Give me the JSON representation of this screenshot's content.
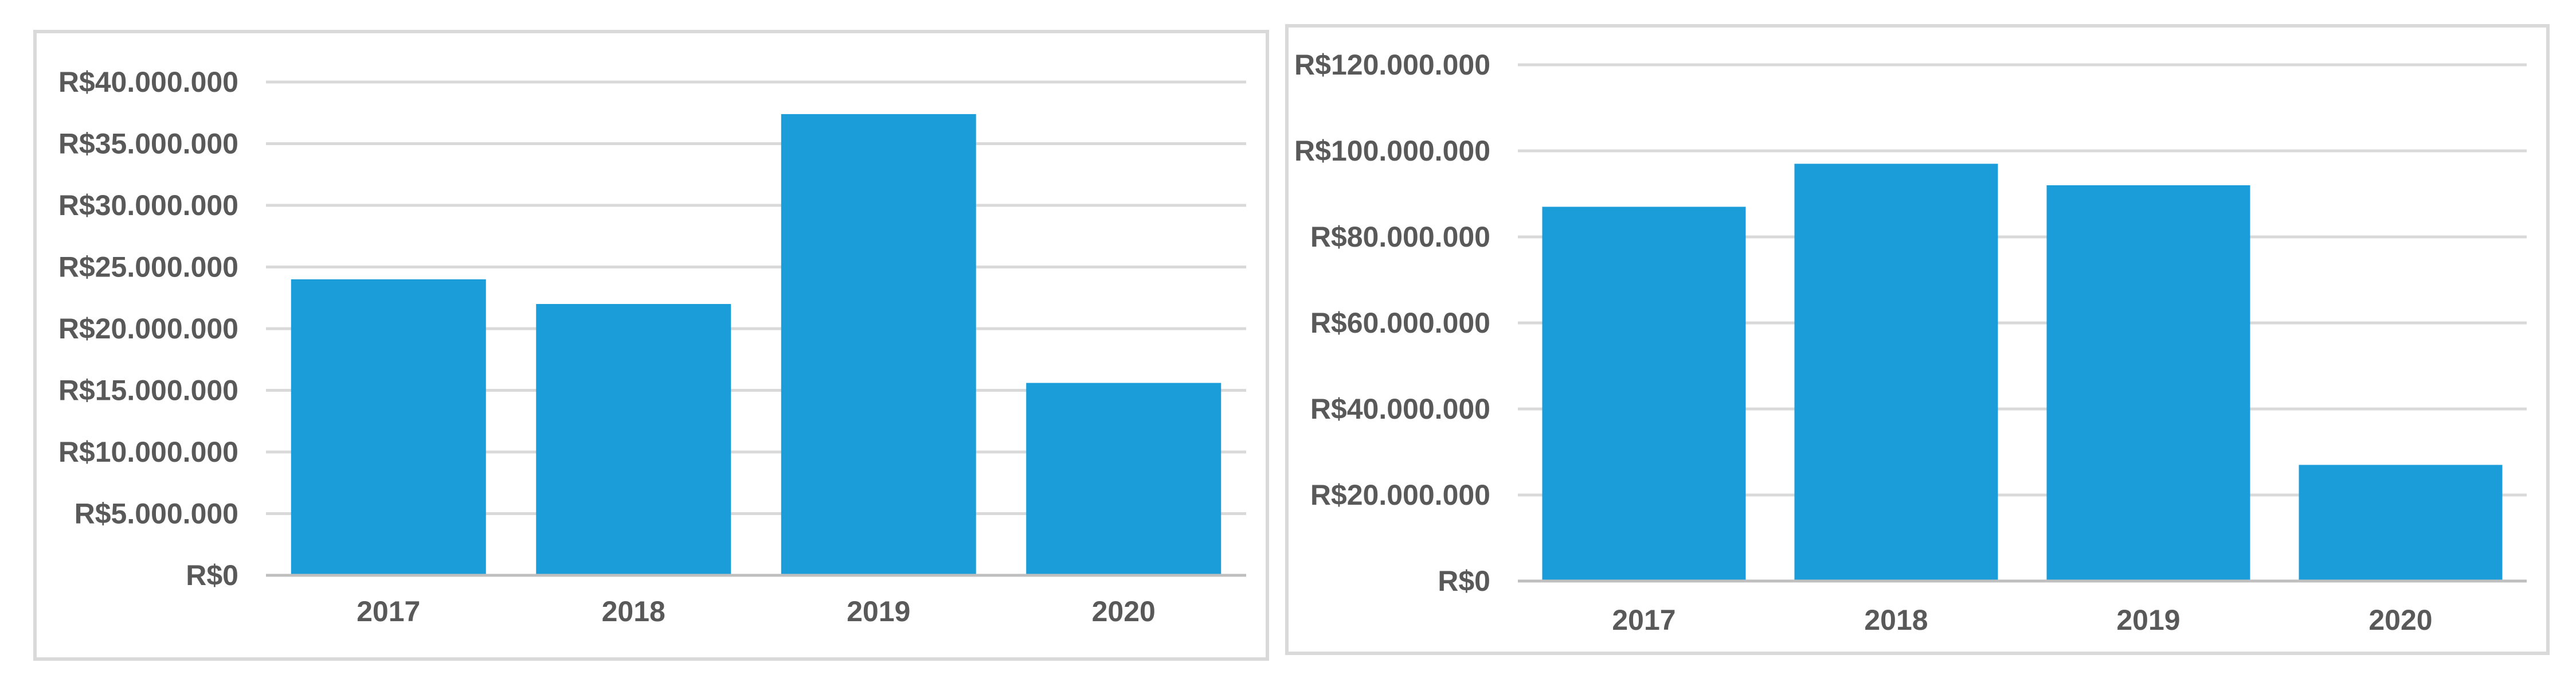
{
  "chart_data": [
    {
      "type": "bar",
      "categories": [
        "2017",
        "2018",
        "2019",
        "2020"
      ],
      "values": [
        24000000,
        22000000,
        37400000,
        15600000
      ],
      "ylim": [
        0,
        40000000
      ],
      "y_ticks": [
        "R$0",
        "R$5.000.000",
        "R$10.000.000",
        "R$15.000.000",
        "R$20.000.000",
        "R$25.000.000",
        "R$30.000.000",
        "R$35.000.000",
        "R$40.000.000"
      ],
      "bar_color": "#1a9dd9",
      "grid": true,
      "legend": "none"
    },
    {
      "type": "bar",
      "categories": [
        "2017",
        "2018",
        "2019",
        "2020"
      ],
      "values": [
        87000000,
        97000000,
        92000000,
        27000000
      ],
      "ylim": [
        0,
        120000000
      ],
      "y_ticks": [
        "R$0",
        "R$20.000.000",
        "R$40.000.000",
        "R$60.000.000",
        "R$80.000.000",
        "R$100.000.000",
        "R$120.000.000"
      ],
      "bar_color": "#1a9dd9",
      "grid": true,
      "legend": "none"
    }
  ]
}
